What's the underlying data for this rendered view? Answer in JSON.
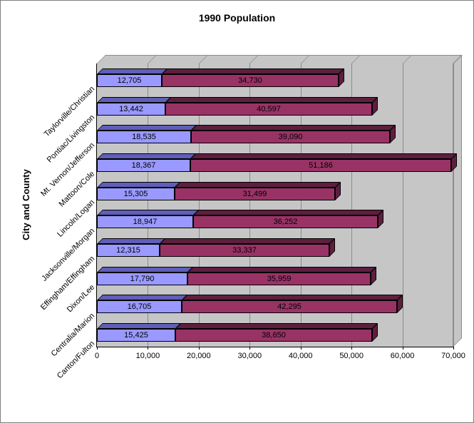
{
  "frame": {
    "background": "#FFFFFF",
    "border_color": "#7F7F7F"
  },
  "chart_data": {
    "type": "bar",
    "orientation": "horizontal",
    "stacked": true,
    "effect": "3d",
    "title": "1990 Population",
    "xlabel": "",
    "ylabel": "City and County",
    "xlim": [
      0,
      70000
    ],
    "grid": "vertical",
    "legend_position": "none",
    "plot_wall_color": "#C6C6C6",
    "gridline_color": "#8C8C8C",
    "bar_outline_color": "#000000",
    "x_ticks": [
      {
        "value": 0,
        "label": "0"
      },
      {
        "value": 10000,
        "label": "10,000"
      },
      {
        "value": 20000,
        "label": "20,000"
      },
      {
        "value": 30000,
        "label": "30,000"
      },
      {
        "value": 40000,
        "label": "40,000"
      },
      {
        "value": 50000,
        "label": "50,000"
      },
      {
        "value": 60000,
        "label": "60,000"
      },
      {
        "value": 70000,
        "label": "70,000"
      }
    ],
    "categories_order": "top-to-bottom",
    "categories": [
      "Taylorville/Christian",
      "Pontiac/Livingston",
      "Mt. Vernon/Jefferson",
      "Mattoon/Cole",
      "Lincoln/Logan",
      "Jacksonville/Morgan",
      "Effingham/Effingham",
      "Dixon/Lee",
      "Centralia/Marion",
      "Canton/Fulton"
    ],
    "series": [
      {
        "id": "city",
        "color": "#9999FF",
        "shade_color": "#5F5FB8",
        "values": [
          12705,
          13442,
          18535,
          18367,
          15305,
          18947,
          12315,
          17790,
          16705,
          15425
        ],
        "data_labels": [
          "12,705",
          "13,442",
          "18,535",
          "18,367",
          "15,305",
          "18,947",
          "12,315",
          "17,790",
          "16,705",
          "15,425"
        ]
      },
      {
        "id": "county",
        "color": "#993366",
        "shade_color": "#5E1F3F",
        "values": [
          34730,
          40597,
          39090,
          51186,
          31499,
          36252,
          33337,
          35959,
          42295,
          38650
        ],
        "data_labels": [
          "34,730",
          "40,597",
          "39,090",
          "51,186",
          "31,499",
          "36,252",
          "33,337",
          "35,959",
          "42,295",
          "38,650"
        ]
      }
    ]
  }
}
